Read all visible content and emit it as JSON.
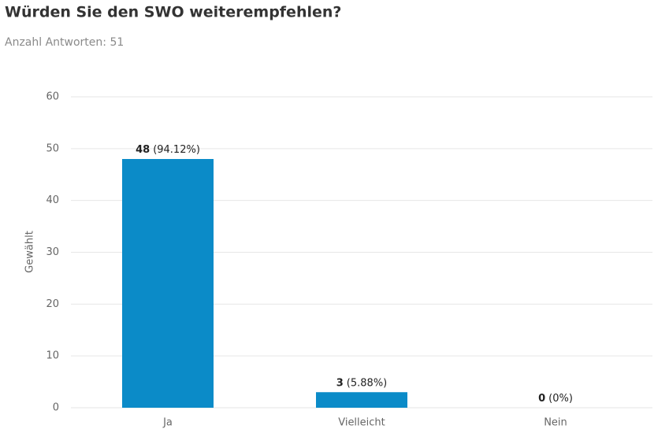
{
  "chart_data": {
    "type": "bar",
    "title": "Würden Sie den SWO weiterempfehlen?",
    "subtitle": "Anzahl Antworten: 51",
    "y_label": "Gewählt",
    "categories": [
      "Ja",
      "Vielleicht",
      "Nein"
    ],
    "values": [
      48,
      3,
      0
    ],
    "percent_labels": [
      "(94.12%)",
      "(5.88%)",
      "(0%)"
    ],
    "color": "#0b8bc8",
    "ylim": [
      0,
      60
    ],
    "yticks": [
      0,
      10,
      20,
      30,
      40,
      50,
      60
    ],
    "grid": true
  }
}
